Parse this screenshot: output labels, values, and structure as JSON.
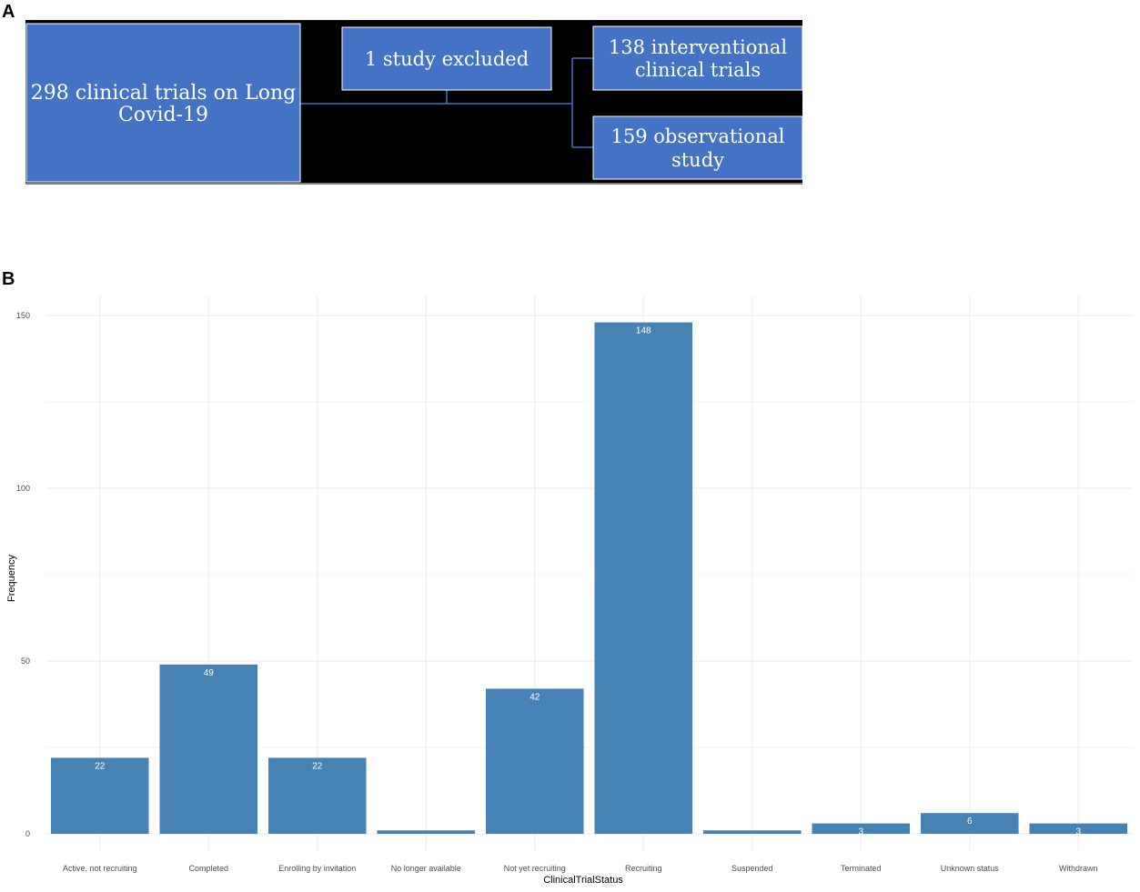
{
  "panel_a": {
    "letter": "A",
    "boxes": {
      "total": [
        "298 clinical trials on Long",
        "Covid-19"
      ],
      "excluded": [
        "1 study excluded"
      ],
      "interventional": [
        "138 interventional",
        "clinical trials"
      ],
      "observational": [
        "159 observational",
        "study"
      ]
    },
    "colors": {
      "box_fill": "#4472c4",
      "box_border": "#ffffff",
      "background": "#000000",
      "connector": "#4472c4"
    }
  },
  "panel_b": {
    "letter": "B"
  },
  "chart_data": {
    "type": "bar",
    "title": "",
    "xlabel": "ClinicalTrialStatus",
    "ylabel": "Frequency",
    "categories": [
      "Active, not recruiting",
      "Completed",
      "Enrolling by invitation",
      "No longer available",
      "Not yet recruiting",
      "Recruiting",
      "Suspended",
      "Terminated",
      "Unknown status",
      "Withdrawn"
    ],
    "values": [
      22,
      49,
      22,
      1,
      42,
      148,
      1,
      3,
      6,
      3
    ],
    "data_labels": [
      "22",
      "49",
      "22",
      "",
      "42",
      "148",
      "",
      "3",
      "6",
      "3"
    ],
    "yticks": [
      0,
      50,
      100,
      150
    ],
    "ylim": [
      0,
      155
    ],
    "grid": true,
    "bar_color": "#4682b4",
    "grid_color": "#ebebeb"
  }
}
